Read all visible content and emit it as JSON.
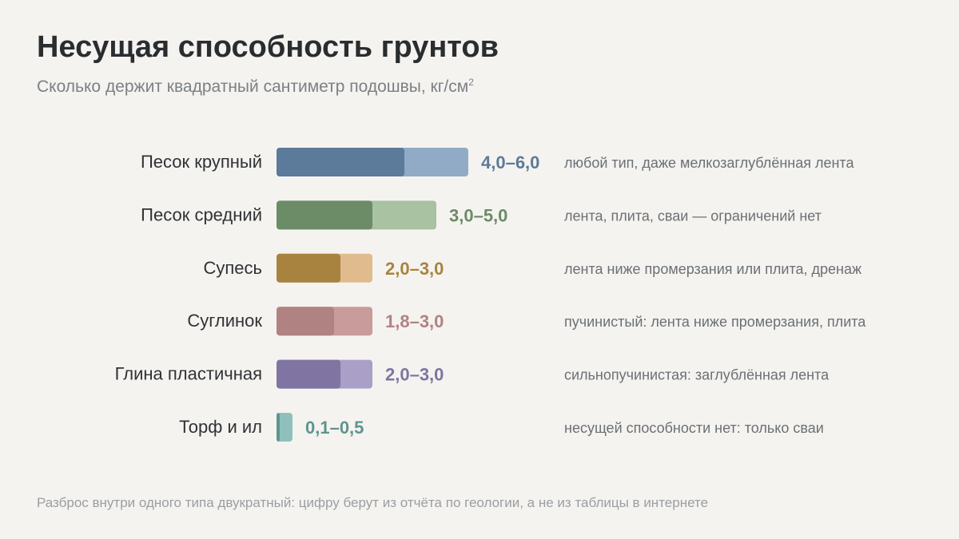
{
  "header": {
    "title": "Несущая способность грунтов",
    "subtitle": "Сколько держит квадратный сантиметр подошвы, кг/см",
    "subtitle_sup": "2"
  },
  "footnote": "Разброс внутри одного типа двукратный: цифру берут из отчёта по геологии, а не из таблицы в интернете",
  "chart_data": {
    "type": "bar",
    "orientation": "horizontal",
    "title": "Несущая способность грунтов",
    "xlim": [
      0,
      6.0
    ],
    "categories": [
      "Песок крупный",
      "Песок средний",
      "Супесь",
      "Суглинок",
      "Глина пластичная",
      "Торф и ил"
    ],
    "series": [
      {
        "values_min": [
          4.0,
          3.0,
          2.0,
          1.8,
          2.0,
          0.1
        ],
        "values_max": [
          6.0,
          5.0,
          3.0,
          3.0,
          3.0,
          0.5
        ]
      }
    ],
    "value_labels": [
      "4,0–6,0",
      "3,0–5,0",
      "2,0–3,0",
      "1,8–3,0",
      "2,0–3,0",
      "0,1–0,5"
    ],
    "notes": [
      "любой тип, даже мелкозаглублённая лента",
      "лента, плита, сваи — ограничений нет",
      "лента ниже промерзания или плита, дренаж",
      "пучинистый: лента ниже промерзания, плита",
      "сильнопучинистая: заглублённая лента",
      "несущей способности нет: только сваи"
    ],
    "colors_dark": [
      "#5c7a99",
      "#6b8c66",
      "#a88340",
      "#b08282",
      "#8074a3",
      "#5f948f"
    ],
    "colors_light": [
      "#91aac6",
      "#a9c2a2",
      "#dfbb8e",
      "#c99b9b",
      "#aa9fc7",
      "#8fc0bb"
    ],
    "grid": false
  }
}
